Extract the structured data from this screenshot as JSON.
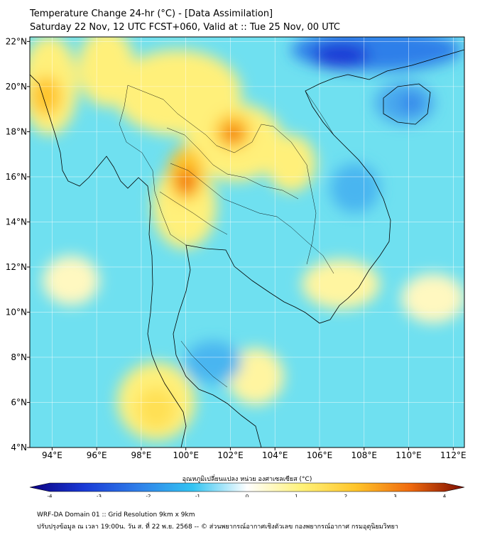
{
  "title": {
    "line1": "Temperature Change 24-hr (°C) - [Data Assimilation]",
    "line2": "Saturday 22 Nov, 12 UTC FCST+060, Valid at :: Tue 25 Nov, 00 UTC"
  },
  "map": {
    "lat_labels": [
      "22°N",
      "20°N",
      "18°N",
      "16°N",
      "14°N",
      "12°N",
      "10°N",
      "8°N",
      "6°N",
      "4°N"
    ],
    "lat_values": [
      22,
      20,
      18,
      16,
      14,
      12,
      10,
      8,
      6,
      4
    ],
    "lon_labels": [
      "94°E",
      "96°E",
      "98°E",
      "100°E",
      "102°E",
      "104°E",
      "106°E",
      "108°E",
      "110°E",
      "112°E"
    ],
    "lon_values": [
      94,
      96,
      98,
      100,
      102,
      104,
      106,
      108,
      110,
      112
    ],
    "lon_range": [
      93,
      112.5
    ],
    "lat_range": [
      4,
      22.2
    ],
    "background_color": "#6fe0f0",
    "features": [
      {
        "name": "warm-myanmar-west",
        "lon": 93.8,
        "lat": 19.8,
        "anomaly": 2.3
      },
      {
        "name": "warm-north-thailand",
        "lon": 100.0,
        "lat": 15.8,
        "anomaly": 2.8
      },
      {
        "name": "warm-laos",
        "lon": 102.0,
        "lat": 18.0,
        "anomaly": 2.6
      },
      {
        "name": "warm-andaman",
        "lon": 98.6,
        "lat": 5.4,
        "anomaly": 1.8
      },
      {
        "name": "cool-hainan",
        "lon": 109.8,
        "lat": 19.3,
        "anomaly": -2.0
      },
      {
        "name": "cool-south-china",
        "lon": 108.0,
        "lat": 21.6,
        "anomaly": -3.4
      },
      {
        "name": "cool-vietnam-central",
        "lon": 108.0,
        "lat": 15.8,
        "anomaly": -1.5
      },
      {
        "name": "cool-gulf-thailand",
        "lon": 101.0,
        "lat": 8.5,
        "anomaly": -1.2
      }
    ]
  },
  "colorbar": {
    "title": "อุณหภูมิเปลี่ยนแปลง หน่วย องศาเซลเซียส (°C)",
    "min": -4,
    "max": 4,
    "tick_labels": [
      "-4",
      "-3",
      "-2",
      "-1",
      "0",
      "1",
      "2",
      "3",
      "4"
    ],
    "colors": [
      "#0b0080",
      "#1a3ad6",
      "#2f7fe9",
      "#33c4f2",
      "#ffffff",
      "#fff27a",
      "#ffc52a",
      "#f06a0e",
      "#7a0b00"
    ]
  },
  "footer": {
    "line1": "WRF-DA Domain 01 :: Grid Resolution 9km x 9km",
    "line2": "ปรับปรุงข้อมูล ณ เวลา 19:00น. วัน ส. ที่ 22 พ.ย. 2568 -- © ส่วนพยากรณ์อากาศเชิงตัวเลข กองพยากรณ์อากาศ กรมอุตุนิยมวิทยา"
  }
}
